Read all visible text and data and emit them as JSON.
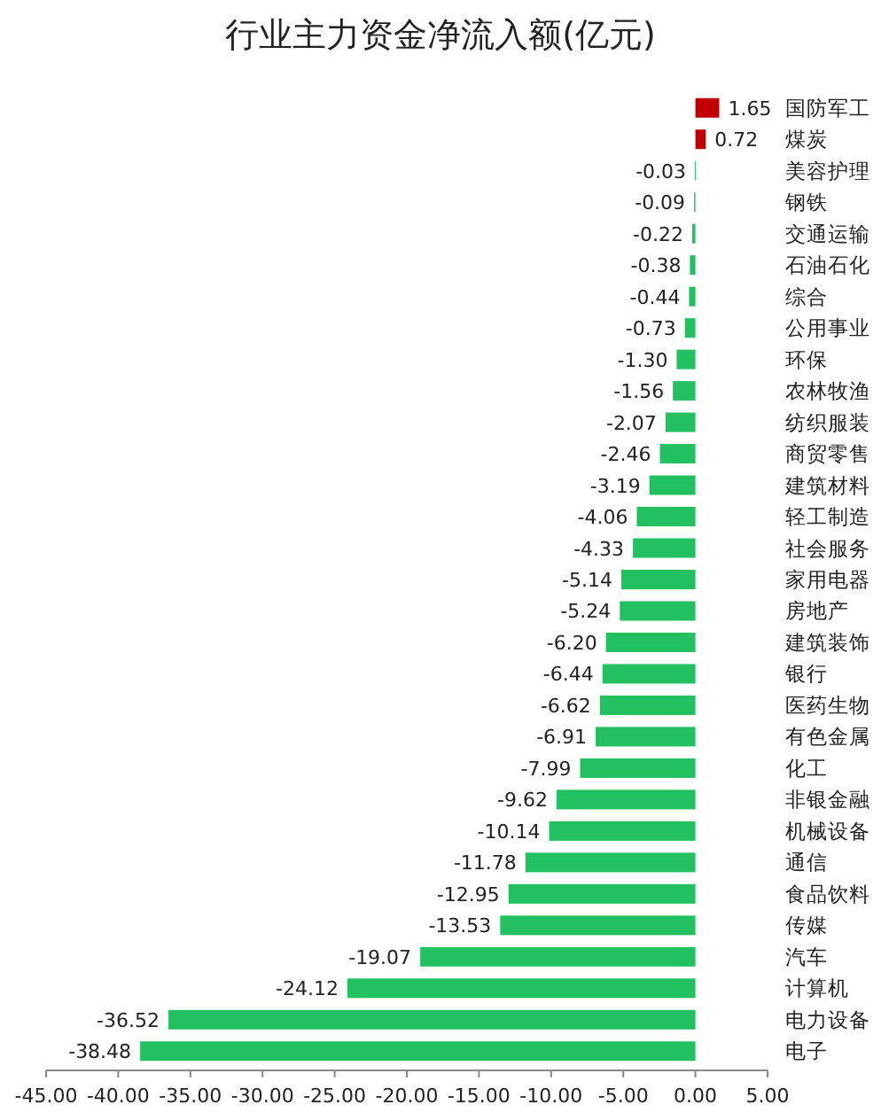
{
  "chart_data": {
    "type": "bar",
    "orientation": "horizontal",
    "title": "行业主力资金净流入额(亿元)",
    "categories": [
      "国防军工",
      "煤炭",
      "美容护理",
      "钢铁",
      "交通运输",
      "石油石化",
      "综合",
      "公用事业",
      "环保",
      "农林牧渔",
      "纺织服装",
      "商贸零售",
      "建筑材料",
      "轻工制造",
      "社会服务",
      "家用电器",
      "房地产",
      "建筑装饰",
      "银行",
      "医药生物",
      "有色金属",
      "化工",
      "非银金融",
      "机械设备",
      "通信",
      "食品饮料",
      "传媒",
      "汽车",
      "计算机",
      "电力设备",
      "电子"
    ],
    "values": [
      1.65,
      0.72,
      -0.03,
      -0.09,
      -0.22,
      -0.38,
      -0.44,
      -0.73,
      -1.3,
      -1.56,
      -2.07,
      -2.46,
      -3.19,
      -4.06,
      -4.33,
      -5.14,
      -5.24,
      -6.2,
      -6.44,
      -6.62,
      -6.91,
      -7.99,
      -9.62,
      -10.14,
      -11.78,
      -12.95,
      -13.53,
      -19.07,
      -24.12,
      -36.52,
      -38.48
    ],
    "value_labels": [
      "1.65",
      "0.72",
      "-0.03",
      "-0.09",
      "-0.22",
      "-0.38",
      "-0.44",
      "-0.73",
      "-1.30",
      "-1.56",
      "-2.07",
      "-2.46",
      "-3.19",
      "-4.06",
      "-4.33",
      "-5.14",
      "-5.24",
      "-6.20",
      "-6.44",
      "-6.62",
      "-6.91",
      "-7.99",
      "-9.62",
      "-10.14",
      "-11.78",
      "-12.95",
      "-13.53",
      "-19.07",
      "-24.12",
      "-36.52",
      "-38.48"
    ],
    "colors": [
      "#c00000",
      "#c00000",
      "#22c060",
      "#22c060",
      "#22c060",
      "#22c060",
      "#22c060",
      "#22c060",
      "#22c060",
      "#22c060",
      "#22c060",
      "#22c060",
      "#22c060",
      "#22c060",
      "#22c060",
      "#22c060",
      "#22c060",
      "#22c060",
      "#22c060",
      "#22c060",
      "#22c060",
      "#22c060",
      "#22c060",
      "#22c060",
      "#22c060",
      "#22c060",
      "#22c060",
      "#22c060",
      "#22c060",
      "#22c060",
      "#22c060"
    ],
    "xlim": [
      -45,
      5
    ],
    "xticks": [
      {
        "value": -45,
        "label": "-45.00"
      },
      {
        "value": -40,
        "label": "-40.00"
      },
      {
        "value": -35,
        "label": "-35.00"
      },
      {
        "value": -30,
        "label": "-30.00"
      },
      {
        "value": -25,
        "label": "-25.00"
      },
      {
        "value": -20,
        "label": "-20.00"
      },
      {
        "value": -15,
        "label": "-15.00"
      },
      {
        "value": -10,
        "label": "-10.00"
      },
      {
        "value": -5,
        "label": "-5.00"
      },
      {
        "value": 0,
        "label": "0.00"
      },
      {
        "value": 5,
        "label": "5.00"
      }
    ]
  }
}
